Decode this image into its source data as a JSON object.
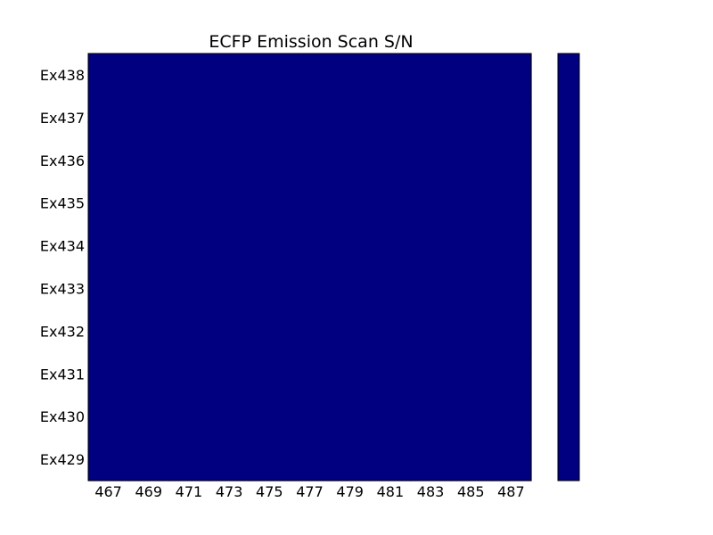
{
  "chart_data": {
    "type": "heatmap",
    "title": "ECFP Emission Scan S/N",
    "x_categories": [
      "467",
      "469",
      "471",
      "473",
      "475",
      "477",
      "479",
      "481",
      "483",
      "485",
      "487"
    ],
    "y_categories": [
      "Ex438",
      "Ex437",
      "Ex436",
      "Ex435",
      "Ex434",
      "Ex433",
      "Ex432",
      "Ex431",
      "Ex430",
      "Ex429"
    ],
    "cell_color": "#000080",
    "colorbar_color": "#000080",
    "colorbar_ticks": []
  }
}
